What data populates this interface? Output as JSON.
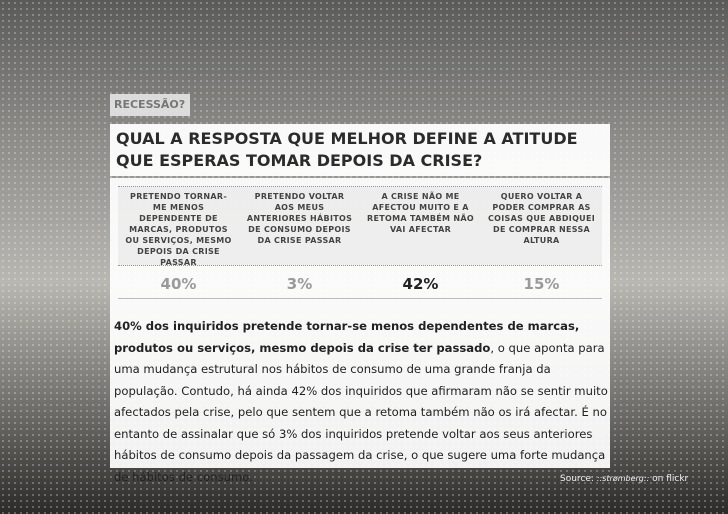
{
  "tag": "RECESSÃO?",
  "title": "QUAL A RESPOSTA QUE MELHOR DEFINE A ATITUDE QUE ESPERAS TOMAR DEPOIS DA CRISE?",
  "options": [
    {
      "text": "PRETENDO TORNAR-ME MENOS DEPENDENTE DE MARCAS, PRODUTOS OU SERVIÇOS, MESMO DEPOIS DA CRISE PASSAR",
      "percent": "40%"
    },
    {
      "text": "PRETENDO VOLTAR AOS MEUS ANTERIORES HÁBITOS DE CONSUMO DEPOIS DA CRISE PASSAR",
      "percent": "3%"
    },
    {
      "text": "A CRISE NÃO ME AFECTOU MUITO E A RETOMA TAMBÉM NÃO VAI AFECTAR",
      "percent": "42%"
    },
    {
      "text": "QUERO VOLTAR A PODER COMPRAR AS COISAS QUE ABDIQUEI DE COMPRAR NESSA ALTURA",
      "percent": "15%"
    }
  ],
  "paragraph": {
    "bold": "40% dos inquiridos pretende tornar-se menos dependentes de marcas, produtos ou serviços, mesmo depois da crise ter passado",
    "rest": ", o que aponta para uma mudança estrutural nos hábitos de consumo de uma grande franja da população. Contudo, há ainda 42% dos inquiridos que afirmaram não se sentir muito afectados pela crise, pelo que sentem que a retoma também não os irá afectar. É no entanto de assinalar que só 3% dos inquiridos pretende voltar aos seus anteriores hábitos de consumo depois da passagem da crise, o que sugere uma forte mudança de hábitos de consumo."
  },
  "source": {
    "label": "Source:",
    "author": "::strømberg::",
    "suffix": "on flickr"
  }
}
